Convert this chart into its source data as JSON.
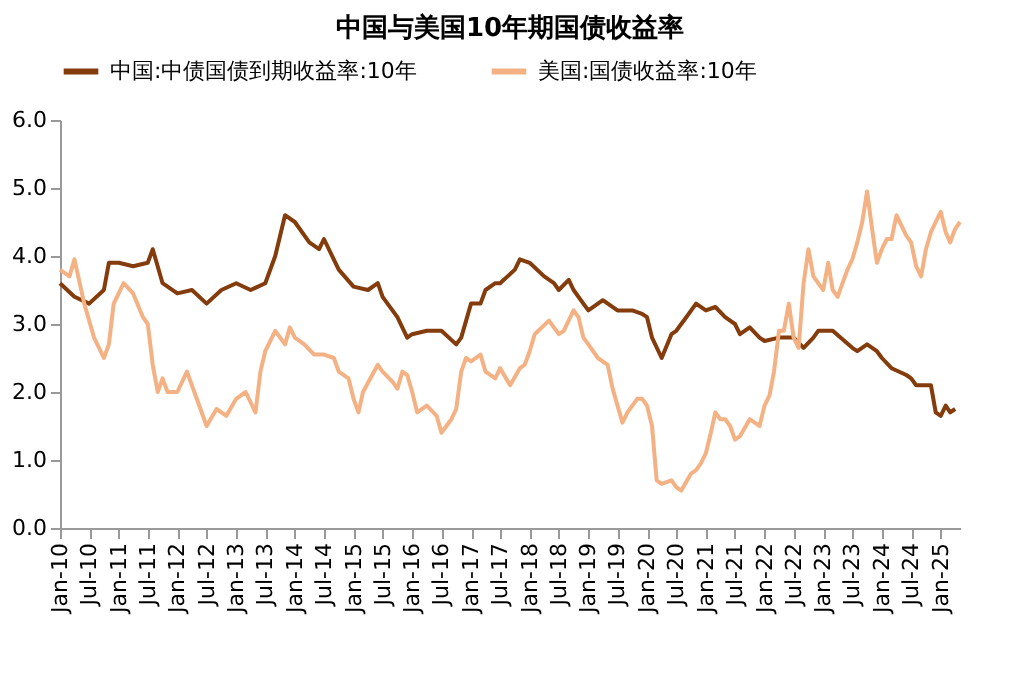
{
  "chart_data": {
    "type": "line",
    "title": "中国与美国10年期国债收益率",
    "xlim": [
      "2010-01",
      "2025-05"
    ],
    "xticks": [
      {
        "value": "2010-01",
        "label": "Jan-10"
      },
      {
        "value": "2010-07",
        "label": "Jul-10"
      },
      {
        "value": "2011-01",
        "label": "Jan-11"
      },
      {
        "value": "2011-07",
        "label": "Jul-11"
      },
      {
        "value": "2012-01",
        "label": "Jan-12"
      },
      {
        "value": "2012-07",
        "label": "Jul-12"
      },
      {
        "value": "2013-01",
        "label": "Jan-13"
      },
      {
        "value": "2013-07",
        "label": "Jul-13"
      },
      {
        "value": "2014-01",
        "label": "Jan-14"
      },
      {
        "value": "2014-07",
        "label": "Jul-14"
      },
      {
        "value": "2015-01",
        "label": "Jan-15"
      },
      {
        "value": "2015-07",
        "label": "Jul-15"
      },
      {
        "value": "2016-01",
        "label": "Jan-16"
      },
      {
        "value": "2016-07",
        "label": "Jul-16"
      },
      {
        "value": "2017-01",
        "label": "Jan-17"
      },
      {
        "value": "2017-07",
        "label": "Jul-17"
      },
      {
        "value": "2018-01",
        "label": "Jan-18"
      },
      {
        "value": "2018-07",
        "label": "Jul-18"
      },
      {
        "value": "2019-01",
        "label": "Jan-19"
      },
      {
        "value": "2019-07",
        "label": "Jul-19"
      },
      {
        "value": "2020-01",
        "label": "Jan-20"
      },
      {
        "value": "2020-07",
        "label": "Jul-20"
      },
      {
        "value": "2021-01",
        "label": "Jan-21"
      },
      {
        "value": "2021-07",
        "label": "Jul-21"
      },
      {
        "value": "2022-01",
        "label": "Jan-22"
      },
      {
        "value": "2022-07",
        "label": "Jul-22"
      },
      {
        "value": "2023-01",
        "label": "Jan-23"
      },
      {
        "value": "2023-07",
        "label": "Jul-23"
      },
      {
        "value": "2024-01",
        "label": "Jan-24"
      },
      {
        "value": "2024-07",
        "label": "Jul-24"
      },
      {
        "value": "2025-01",
        "label": "Jan-25"
      }
    ],
    "ylim": [
      0,
      6
    ],
    "yticks": [
      {
        "value": 0,
        "label": "0.0"
      },
      {
        "value": 1,
        "label": "1.0"
      },
      {
        "value": 2,
        "label": "2.0"
      },
      {
        "value": 3,
        "label": "3.0"
      },
      {
        "value": 4,
        "label": "4.0"
      },
      {
        "value": 5,
        "label": "5.0"
      },
      {
        "value": 6,
        "label": "6.0"
      }
    ],
    "grid": false,
    "legend": "top",
    "marker": "none",
    "line_style": "solid",
    "series": [
      {
        "name": "中国:中债国债到期收益率:10年",
        "color": "#843c0c",
        "x": [
          "2010-01",
          "2010-04",
          "2010-07",
          "2010-10",
          "2010-11",
          "2011-01",
          "2011-04",
          "2011-07",
          "2011-08",
          "2011-10",
          "2012-01",
          "2012-04",
          "2012-07",
          "2012-10",
          "2013-01",
          "2013-04",
          "2013-07",
          "2013-09",
          "2013-11",
          "2014-01",
          "2014-04",
          "2014-06",
          "2014-07",
          "2014-10",
          "2015-01",
          "2015-04",
          "2015-06",
          "2015-07",
          "2015-10",
          "2015-12",
          "2016-01",
          "2016-04",
          "2016-07",
          "2016-10",
          "2016-11",
          "2017-01",
          "2017-03",
          "2017-04",
          "2017-06",
          "2017-07",
          "2017-10",
          "2017-11",
          "2018-01",
          "2018-04",
          "2018-06",
          "2018-07",
          "2018-09",
          "2018-10",
          "2018-12",
          "2019-01",
          "2019-04",
          "2019-07",
          "2019-10",
          "2019-12",
          "2020-01",
          "2020-02",
          "2020-04",
          "2020-06",
          "2020-07",
          "2020-09",
          "2020-11",
          "2021-01",
          "2021-03",
          "2021-05",
          "2021-07",
          "2021-08",
          "2021-10",
          "2021-12",
          "2022-01",
          "2022-04",
          "2022-07",
          "2022-09",
          "2022-11",
          "2022-12",
          "2023-01",
          "2023-03",
          "2023-07",
          "2023-08",
          "2023-10",
          "2023-12",
          "2024-01",
          "2024-03",
          "2024-06",
          "2024-07",
          "2024-08",
          "2024-11",
          "2024-12",
          "2025-01",
          "2025-02",
          "2025-03",
          "2025-04"
        ],
        "values": [
          3.6,
          3.4,
          3.3,
          3.5,
          3.9,
          3.9,
          3.85,
          3.9,
          4.1,
          3.6,
          3.45,
          3.5,
          3.3,
          3.5,
          3.6,
          3.5,
          3.6,
          4.0,
          4.6,
          4.5,
          4.2,
          4.1,
          4.25,
          3.8,
          3.55,
          3.5,
          3.6,
          3.4,
          3.1,
          2.8,
          2.85,
          2.9,
          2.9,
          2.7,
          2.8,
          3.3,
          3.3,
          3.5,
          3.6,
          3.6,
          3.8,
          3.95,
          3.9,
          3.7,
          3.6,
          3.5,
          3.65,
          3.5,
          3.3,
          3.2,
          3.35,
          3.2,
          3.2,
          3.15,
          3.1,
          2.8,
          2.5,
          2.85,
          2.9,
          3.1,
          3.3,
          3.2,
          3.25,
          3.1,
          3.0,
          2.85,
          2.95,
          2.8,
          2.75,
          2.8,
          2.8,
          2.65,
          2.8,
          2.9,
          2.9,
          2.9,
          2.65,
          2.6,
          2.7,
          2.6,
          2.5,
          2.35,
          2.25,
          2.2,
          2.1,
          2.1,
          1.7,
          1.65,
          1.8,
          1.7,
          1.75
        ]
      },
      {
        "name": "美国:国债收益率:10年",
        "color": "#f4b183",
        "x": [
          "2010-01",
          "2010-03",
          "2010-04",
          "2010-06",
          "2010-08",
          "2010-10",
          "2010-11",
          "2010-12",
          "2011-02",
          "2011-04",
          "2011-06",
          "2011-07",
          "2011-08",
          "2011-09",
          "2011-10",
          "2011-11",
          "2012-01",
          "2012-03",
          "2012-05",
          "2012-07",
          "2012-09",
          "2012-11",
          "2013-01",
          "2013-03",
          "2013-05",
          "2013-06",
          "2013-07",
          "2013-09",
          "2013-11",
          "2013-12",
          "2014-01",
          "2014-03",
          "2014-05",
          "2014-07",
          "2014-09",
          "2014-10",
          "2014-12",
          "2015-01",
          "2015-02",
          "2015-03",
          "2015-06",
          "2015-07",
          "2015-09",
          "2015-10",
          "2015-11",
          "2015-12",
          "2016-01",
          "2016-02",
          "2016-04",
          "2016-06",
          "2016-07",
          "2016-09",
          "2016-10",
          "2016-11",
          "2016-12",
          "2017-01",
          "2017-03",
          "2017-04",
          "2017-06",
          "2017-07",
          "2017-09",
          "2017-11",
          "2017-12",
          "2018-01",
          "2018-02",
          "2018-05",
          "2018-07",
          "2018-08",
          "2018-10",
          "2018-11",
          "2018-12",
          "2019-01",
          "2019-03",
          "2019-05",
          "2019-06",
          "2019-08",
          "2019-09",
          "2019-11",
          "2019-12",
          "2020-01",
          "2020-02",
          "2020-03",
          "2020-04",
          "2020-06",
          "2020-07",
          "2020-08",
          "2020-09",
          "2020-10",
          "2020-11",
          "2020-12",
          "2021-01",
          "2021-02",
          "2021-03",
          "2021-04",
          "2021-05",
          "2021-06",
          "2021-07",
          "2021-08",
          "2021-10",
          "2021-11",
          "2021-12",
          "2022-01",
          "2022-02",
          "2022-03",
          "2022-04",
          "2022-05",
          "2022-06",
          "2022-07",
          "2022-08",
          "2022-09",
          "2022-10",
          "2022-11",
          "2022-12",
          "2023-01",
          "2023-02",
          "2023-03",
          "2023-04",
          "2023-05",
          "2023-06",
          "2023-07",
          "2023-08",
          "2023-09",
          "2023-10",
          "2023-11",
          "2023-12",
          "2024-01",
          "2024-02",
          "2024-03",
          "2024-04",
          "2024-05",
          "2024-06",
          "2024-07",
          "2024-08",
          "2024-09",
          "2024-10",
          "2024-11",
          "2024-12",
          "2025-01",
          "2025-02",
          "2025-03",
          "2025-04",
          "2025-05"
        ],
        "values": [
          3.8,
          3.7,
          3.95,
          3.3,
          2.8,
          2.5,
          2.7,
          3.3,
          3.6,
          3.45,
          3.1,
          3.0,
          2.4,
          2.0,
          2.2,
          2.0,
          2.0,
          2.3,
          1.9,
          1.5,
          1.75,
          1.65,
          1.9,
          2.0,
          1.7,
          2.3,
          2.6,
          2.9,
          2.7,
          2.95,
          2.8,
          2.7,
          2.55,
          2.55,
          2.5,
          2.3,
          2.2,
          1.9,
          1.7,
          2.0,
          2.4,
          2.3,
          2.15,
          2.05,
          2.3,
          2.25,
          2.0,
          1.7,
          1.8,
          1.65,
          1.4,
          1.6,
          1.75,
          2.3,
          2.5,
          2.45,
          2.55,
          2.3,
          2.2,
          2.35,
          2.1,
          2.35,
          2.4,
          2.6,
          2.85,
          3.05,
          2.85,
          2.9,
          3.2,
          3.1,
          2.8,
          2.7,
          2.5,
          2.4,
          2.05,
          1.55,
          1.7,
          1.9,
          1.9,
          1.8,
          1.5,
          0.7,
          0.65,
          0.7,
          0.6,
          0.55,
          0.68,
          0.8,
          0.85,
          0.95,
          1.1,
          1.4,
          1.7,
          1.6,
          1.6,
          1.5,
          1.3,
          1.35,
          1.6,
          1.55,
          1.5,
          1.8,
          1.95,
          2.3,
          2.9,
          2.9,
          3.3,
          2.8,
          2.65,
          3.6,
          4.1,
          3.7,
          3.6,
          3.5,
          3.9,
          3.5,
          3.4,
          3.6,
          3.8,
          3.95,
          4.2,
          4.5,
          4.95,
          4.4,
          3.9,
          4.1,
          4.25,
          4.25,
          4.6,
          4.45,
          4.3,
          4.2,
          3.85,
          3.7,
          4.1,
          4.35,
          4.5,
          4.65,
          4.35,
          4.2,
          4.4,
          4.5
        ]
      }
    ]
  }
}
